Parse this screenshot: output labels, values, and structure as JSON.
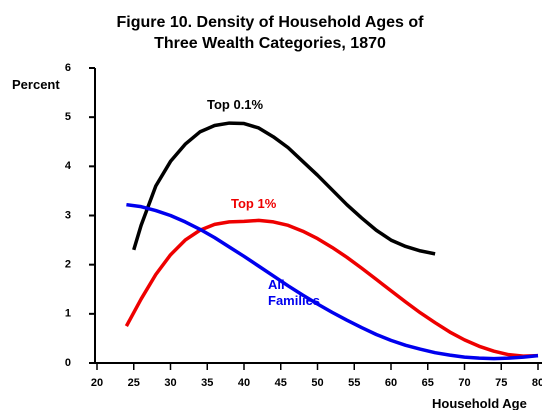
{
  "chart_data": {
    "type": "line",
    "title": "Figure 10. Density of Household Ages of Three Wealth Categories, 1870",
    "ylabel": "Percent",
    "xlabel": "Household Age",
    "xlim": [
      20,
      80
    ],
    "xticks": [
      20,
      25,
      30,
      35,
      40,
      45,
      50,
      55,
      60,
      65,
      70,
      75,
      80
    ],
    "ylim": [
      0,
      6
    ],
    "yticks": [
      0,
      1,
      2,
      3,
      4,
      5,
      6
    ],
    "series": [
      {
        "name": "Top 0.1%",
        "color": "#000000",
        "x": [
          25,
          26,
          28,
          30,
          32,
          34,
          36,
          38,
          40,
          42,
          44,
          46,
          48,
          50,
          52,
          54,
          56,
          58,
          60,
          62,
          64,
          66
        ],
        "values": [
          2.3,
          2.8,
          3.6,
          4.1,
          4.45,
          4.7,
          4.83,
          4.88,
          4.87,
          4.78,
          4.6,
          4.38,
          4.1,
          3.82,
          3.52,
          3.22,
          2.95,
          2.7,
          2.5,
          2.37,
          2.28,
          2.22
        ]
      },
      {
        "name": "Top 1%",
        "color": "#ee0000",
        "x": [
          24,
          26,
          28,
          30,
          32,
          34,
          36,
          38,
          40,
          42,
          44,
          46,
          48,
          50,
          52,
          54,
          56,
          58,
          60,
          62,
          64,
          66,
          68,
          70,
          72,
          74,
          76,
          78,
          80
        ],
        "values": [
          0.75,
          1.3,
          1.8,
          2.2,
          2.5,
          2.7,
          2.82,
          2.87,
          2.88,
          2.9,
          2.87,
          2.8,
          2.68,
          2.53,
          2.35,
          2.15,
          1.93,
          1.7,
          1.47,
          1.24,
          1.02,
          0.82,
          0.63,
          0.47,
          0.34,
          0.24,
          0.17,
          0.14,
          0.15
        ]
      },
      {
        "name": "All Families",
        "color": "#0000ee",
        "x": [
          24,
          26,
          28,
          30,
          32,
          34,
          36,
          38,
          40,
          42,
          44,
          46,
          48,
          50,
          52,
          54,
          56,
          58,
          60,
          62,
          64,
          66,
          68,
          70,
          72,
          74,
          76,
          78,
          80
        ],
        "values": [
          3.22,
          3.18,
          3.1,
          3.0,
          2.87,
          2.72,
          2.55,
          2.36,
          2.17,
          1.97,
          1.77,
          1.57,
          1.38,
          1.2,
          1.03,
          0.87,
          0.72,
          0.58,
          0.46,
          0.36,
          0.28,
          0.21,
          0.16,
          0.12,
          0.1,
          0.09,
          0.1,
          0.12,
          0.15
        ]
      }
    ]
  }
}
